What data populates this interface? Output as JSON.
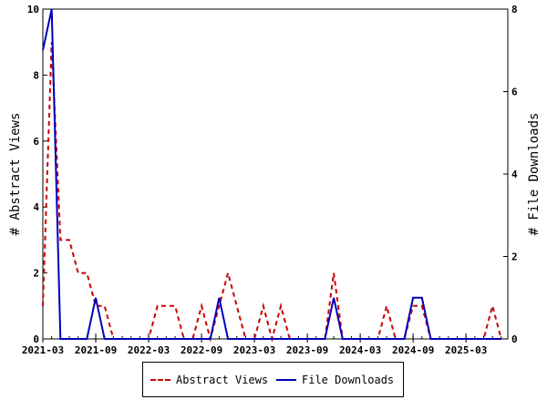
{
  "chart_data": {
    "type": "line",
    "x_start": "2021-03",
    "x_step": "month",
    "x_tick_labels": [
      "2021-03",
      "2021-09",
      "2022-03",
      "2022-09",
      "2023-03",
      "2023-09",
      "2024-03",
      "2024-09",
      "2025-03"
    ],
    "ylabel": "# Abstract Views",
    "y2label": "# File Downloads",
    "ylim": [
      0,
      10
    ],
    "y2lim": [
      0,
      8
    ],
    "y_ticks": [
      "0",
      "2",
      "4",
      "6",
      "8",
      "10"
    ],
    "y2_ticks": [
      "0",
      "2",
      "4",
      "6",
      "8"
    ],
    "grid": false,
    "legend_position": "bottom",
    "series": [
      {
        "name": "Abstract Views",
        "axis": "left",
        "color": "#cc0000",
        "style": "dashed",
        "values": [
          1,
          9,
          3,
          3,
          2,
          2,
          1,
          1,
          0,
          0,
          0,
          0,
          0,
          1,
          1,
          1,
          0,
          0,
          1,
          0,
          1,
          2,
          1,
          0,
          0,
          1,
          0,
          1,
          0,
          0,
          0,
          0,
          0,
          2,
          0,
          0,
          0,
          0,
          0,
          1,
          0,
          0,
          1,
          1,
          0,
          0,
          0,
          0,
          0,
          0,
          0,
          1,
          0
        ]
      },
      {
        "name": "File Downloads",
        "axis": "right",
        "color": "#0000bb",
        "style": "solid",
        "values": [
          7,
          8,
          0,
          0,
          0,
          0,
          1,
          0,
          0,
          0,
          0,
          0,
          0,
          0,
          0,
          0,
          0,
          0,
          0,
          0,
          1,
          0,
          0,
          0,
          0,
          0,
          0,
          0,
          0,
          0,
          0,
          0,
          0,
          1,
          0,
          0,
          0,
          0,
          0,
          0,
          0,
          0,
          1,
          1,
          0,
          0,
          0,
          0,
          0,
          0,
          0,
          0,
          0
        ]
      }
    ]
  }
}
